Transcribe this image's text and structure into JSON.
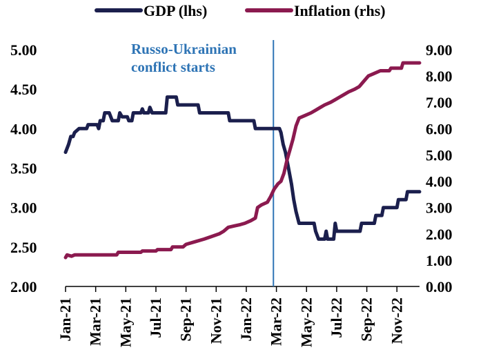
{
  "chart_data": {
    "type": "line",
    "legend": {
      "placement": "top",
      "entries": [
        {
          "series": "gdp",
          "label": "GDP (lhs)"
        },
        {
          "series": "inflation",
          "label": "Inflation (rhs)"
        }
      ]
    },
    "x_axis": {
      "ticks": [
        "Jan-21",
        "Mar-21",
        "May-21",
        "Jul-21",
        "Sep-21",
        "Nov-21",
        "Jan-22",
        "Mar-22",
        "May-22",
        "Jul-22",
        "Sep-22",
        "Nov-22"
      ],
      "range_months": [
        0,
        23.5
      ]
    },
    "y_left": {
      "min": 2.0,
      "max": 5.0,
      "ticks": [
        "2.00",
        "2.50",
        "3.00",
        "3.50",
        "4.00",
        "4.50",
        "5.00"
      ]
    },
    "y_right": {
      "min": 0.0,
      "max": 9.0,
      "ticks": [
        "0.00",
        "1.00",
        "2.00",
        "3.00",
        "4.00",
        "5.00",
        "6.00",
        "7.00",
        "8.00",
        "9.00"
      ]
    },
    "grid": false,
    "annotation": {
      "lines": [
        "Russo-Ukrainian",
        "conflict starts"
      ],
      "x_month": 13.8,
      "color": "#2e74b5"
    },
    "series": [
      {
        "id": "gdp",
        "axis": "left",
        "color": "#1b1f4d",
        "points": [
          [
            0,
            3.7
          ],
          [
            0.1,
            3.75
          ],
          [
            0.2,
            3.8
          ],
          [
            0.35,
            3.9
          ],
          [
            0.5,
            3.9
          ],
          [
            0.6,
            3.95
          ],
          [
            0.9,
            4.0
          ],
          [
            1.4,
            4.0
          ],
          [
            1.5,
            4.05
          ],
          [
            2.1,
            4.05
          ],
          [
            2.2,
            4.0
          ],
          [
            2.3,
            4.1
          ],
          [
            2.5,
            4.1
          ],
          [
            2.6,
            4.2
          ],
          [
            2.9,
            4.2
          ],
          [
            3.0,
            4.15
          ],
          [
            3.1,
            4.1
          ],
          [
            3.5,
            4.1
          ],
          [
            3.6,
            4.2
          ],
          [
            3.75,
            4.15
          ],
          [
            4.1,
            4.15
          ],
          [
            4.2,
            4.1
          ],
          [
            4.4,
            4.1
          ],
          [
            4.5,
            4.2
          ],
          [
            5.0,
            4.2
          ],
          [
            5.1,
            4.25
          ],
          [
            5.2,
            4.2
          ],
          [
            5.5,
            4.2
          ],
          [
            5.6,
            4.27
          ],
          [
            5.75,
            4.2
          ],
          [
            6.65,
            4.2
          ],
          [
            6.75,
            4.4
          ],
          [
            7.35,
            4.4
          ],
          [
            7.45,
            4.3
          ],
          [
            8.8,
            4.3
          ],
          [
            8.9,
            4.2
          ],
          [
            10.8,
            4.2
          ],
          [
            10.9,
            4.1
          ],
          [
            12.5,
            4.1
          ],
          [
            12.6,
            4.0
          ],
          [
            14.2,
            4.0
          ],
          [
            14.3,
            3.95
          ],
          [
            14.45,
            3.8
          ],
          [
            14.6,
            3.7
          ],
          [
            14.8,
            3.5
          ],
          [
            15.0,
            3.3
          ],
          [
            15.15,
            3.1
          ],
          [
            15.3,
            2.95
          ],
          [
            15.5,
            2.8
          ],
          [
            16.5,
            2.8
          ],
          [
            16.6,
            2.7
          ],
          [
            16.8,
            2.6
          ],
          [
            17.2,
            2.6
          ],
          [
            17.3,
            2.7
          ],
          [
            17.4,
            2.6
          ],
          [
            17.8,
            2.6
          ],
          [
            17.9,
            2.8
          ],
          [
            18.0,
            2.7
          ],
          [
            19.55,
            2.7
          ],
          [
            19.65,
            2.8
          ],
          [
            20.5,
            2.8
          ],
          [
            20.6,
            2.9
          ],
          [
            21.0,
            2.9
          ],
          [
            21.1,
            3.0
          ],
          [
            22.0,
            3.0
          ],
          [
            22.1,
            3.1
          ],
          [
            22.6,
            3.1
          ],
          [
            22.7,
            3.2
          ],
          [
            23.5,
            3.2
          ]
        ]
      },
      {
        "id": "inflation",
        "axis": "right",
        "color": "#8b1a4f",
        "points": [
          [
            0,
            1.1
          ],
          [
            0.1,
            1.2
          ],
          [
            0.4,
            1.15
          ],
          [
            0.6,
            1.2
          ],
          [
            3.4,
            1.2
          ],
          [
            3.5,
            1.3
          ],
          [
            5.0,
            1.3
          ],
          [
            5.1,
            1.35
          ],
          [
            6.0,
            1.35
          ],
          [
            6.1,
            1.4
          ],
          [
            7.0,
            1.4
          ],
          [
            7.1,
            1.5
          ],
          [
            7.8,
            1.5
          ],
          [
            8.0,
            1.6
          ],
          [
            8.6,
            1.7
          ],
          [
            9.2,
            1.8
          ],
          [
            9.7,
            1.9
          ],
          [
            10.2,
            2.0
          ],
          [
            10.5,
            2.1
          ],
          [
            10.8,
            2.25
          ],
          [
            11.2,
            2.3
          ],
          [
            11.6,
            2.35
          ],
          [
            11.9,
            2.4
          ],
          [
            12.3,
            2.5
          ],
          [
            12.6,
            2.6
          ],
          [
            12.75,
            3.0
          ],
          [
            13.0,
            3.1
          ],
          [
            13.4,
            3.2
          ],
          [
            13.6,
            3.4
          ],
          [
            13.85,
            3.7
          ],
          [
            14.1,
            3.9
          ],
          [
            14.3,
            4.0
          ],
          [
            14.5,
            4.3
          ],
          [
            14.7,
            4.8
          ],
          [
            14.9,
            5.2
          ],
          [
            15.1,
            5.6
          ],
          [
            15.3,
            6.1
          ],
          [
            15.5,
            6.4
          ],
          [
            15.9,
            6.5
          ],
          [
            16.3,
            6.6
          ],
          [
            16.6,
            6.7
          ],
          [
            16.9,
            6.8
          ],
          [
            17.2,
            6.9
          ],
          [
            17.6,
            7.0
          ],
          [
            17.9,
            7.1
          ],
          [
            18.2,
            7.2
          ],
          [
            18.5,
            7.3
          ],
          [
            18.8,
            7.4
          ],
          [
            19.2,
            7.5
          ],
          [
            19.5,
            7.6
          ],
          [
            19.8,
            7.8
          ],
          [
            20.1,
            8.0
          ],
          [
            20.5,
            8.1
          ],
          [
            20.9,
            8.2
          ],
          [
            21.5,
            8.2
          ],
          [
            21.6,
            8.3
          ],
          [
            22.3,
            8.3
          ],
          [
            22.4,
            8.5
          ],
          [
            23.5,
            8.5
          ]
        ]
      }
    ]
  }
}
